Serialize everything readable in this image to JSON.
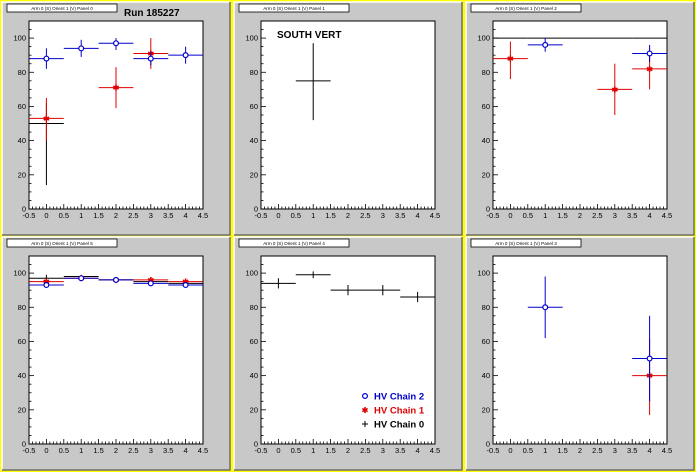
{
  "colors": {
    "outer_border": "#ffff00",
    "panel_bg": "#c8c8c8",
    "plot_bg": "#ffffff",
    "hv_chain_0": "#000000",
    "hv_chain_1": "#e00000",
    "hv_chain_2": "#0000cc"
  },
  "header": {
    "run_label": "Run 185227"
  },
  "chart_data": [
    {
      "type": "scatter",
      "panel_title": "Arm 0 (S) Orient 1 (V) Panel 0",
      "annotation": "",
      "xlim": [
        -0.5,
        4.5
      ],
      "ylim": [
        0,
        110
      ],
      "xticks": [
        "-0.5",
        "0",
        "0.5",
        "1",
        "1.5",
        "2",
        "2.5",
        "3",
        "3.5",
        "4",
        "4.5"
      ],
      "yticks": [
        "0",
        "20",
        "40",
        "60",
        "80",
        "100"
      ],
      "series": [
        {
          "color": "#000000",
          "marker": "cross",
          "points": [
            {
              "x": 0,
              "y": 50,
              "xerr": 0.5,
              "ylo": 14,
              "yhi": 62
            }
          ]
        },
        {
          "color": "#e00000",
          "marker": "star",
          "points": [
            {
              "x": 0,
              "y": 53,
              "xerr": 0.5,
              "ylo": 40,
              "yhi": 65
            },
            {
              "x": 2,
              "y": 71,
              "xerr": 0.5,
              "ylo": 59,
              "yhi": 83
            },
            {
              "x": 3,
              "y": 91,
              "xerr": 0.5,
              "ylo": 82,
              "yhi": 100
            }
          ]
        },
        {
          "color": "#0000cc",
          "marker": "circle",
          "points": [
            {
              "x": 0,
              "y": 88,
              "xerr": 0.5,
              "ylo": 82,
              "yhi": 94
            },
            {
              "x": 1,
              "y": 94,
              "xerr": 0.5,
              "ylo": 89,
              "yhi": 99
            },
            {
              "x": 2,
              "y": 97,
              "xerr": 0.5,
              "ylo": 93,
              "yhi": 100
            },
            {
              "x": 3,
              "y": 88,
              "xerr": 0.5,
              "ylo": 84,
              "yhi": 92
            },
            {
              "x": 4,
              "y": 90,
              "xerr": 0.5,
              "ylo": 85,
              "yhi": 95
            }
          ]
        }
      ]
    },
    {
      "type": "scatter",
      "panel_title": "Arm 0 (S) Orient 1 (V) Panel 1",
      "annotation": "SOUTH VERT",
      "xlim": [
        -0.5,
        4.5
      ],
      "ylim": [
        0,
        110
      ],
      "xticks": [
        "-0.5",
        "0",
        "0.5",
        "1",
        "1.5",
        "2",
        "2.5",
        "3",
        "3.5",
        "4",
        "4.5"
      ],
      "yticks": [
        "0",
        "20",
        "40",
        "60",
        "80",
        "100"
      ],
      "series": [
        {
          "color": "#000000",
          "marker": "cross",
          "points": [
            {
              "x": 1,
              "y": 75,
              "xerr": 0.5,
              "ylo": 52,
              "yhi": 97
            }
          ]
        }
      ]
    },
    {
      "type": "scatter",
      "panel_title": "Arm 0 (S) Orient 1 (V) Panel 2",
      "annotation": "",
      "xlim": [
        -0.5,
        4.5
      ],
      "ylim": [
        0,
        110
      ],
      "xticks": [
        "-0.5",
        "0",
        "0.5",
        "1",
        "1.5",
        "2",
        "2.5",
        "3",
        "3.5",
        "4",
        "4.5"
      ],
      "yticks": [
        "0",
        "20",
        "40",
        "60",
        "80",
        "100"
      ],
      "series": [
        {
          "color": "#000000",
          "marker": "cross",
          "points": [
            {
              "x": 0,
              "y": 100,
              "xerr": 0.5,
              "ylo": 100,
              "yhi": 100
            },
            {
              "x": 1,
              "y": 100,
              "xerr": 0.5,
              "ylo": 100,
              "yhi": 100
            },
            {
              "x": 2,
              "y": 100,
              "xerr": 0.5,
              "ylo": 100,
              "yhi": 100
            },
            {
              "x": 3,
              "y": 100,
              "xerr": 0.5,
              "ylo": 100,
              "yhi": 100
            },
            {
              "x": 4,
              "y": 100,
              "xerr": 0.5,
              "ylo": 100,
              "yhi": 100
            }
          ]
        },
        {
          "color": "#e00000",
          "marker": "star",
          "points": [
            {
              "x": 0,
              "y": 88,
              "xerr": 0.5,
              "ylo": 76,
              "yhi": 98
            },
            {
              "x": 3,
              "y": 70,
              "xerr": 0.5,
              "ylo": 55,
              "yhi": 85
            },
            {
              "x": 4,
              "y": 82,
              "xerr": 0.5,
              "ylo": 70,
              "yhi": 94
            }
          ]
        },
        {
          "color": "#0000cc",
          "marker": "circle",
          "points": [
            {
              "x": 1,
              "y": 96,
              "xerr": 0.5,
              "ylo": 92,
              "yhi": 100
            },
            {
              "x": 4,
              "y": 91,
              "xerr": 0.5,
              "ylo": 86,
              "yhi": 96
            }
          ]
        }
      ]
    },
    {
      "type": "scatter",
      "panel_title": "Arm 0 (S) Orient 1 (V) Panel 5",
      "annotation": "",
      "xlim": [
        -0.5,
        4.5
      ],
      "ylim": [
        0,
        110
      ],
      "xticks": [
        "-0.5",
        "0",
        "0.5",
        "1",
        "1.5",
        "2",
        "2.5",
        "3",
        "3.5",
        "4",
        "4.5"
      ],
      "yticks": [
        "0",
        "20",
        "40",
        "60",
        "80",
        "100"
      ],
      "series": [
        {
          "color": "#000000",
          "marker": "cross",
          "points": [
            {
              "x": 0,
              "y": 97,
              "xerr": 0.5,
              "ylo": 95,
              "yhi": 99
            },
            {
              "x": 1,
              "y": 98,
              "xerr": 0.5,
              "ylo": 97,
              "yhi": 99
            },
            {
              "x": 2,
              "y": 96,
              "xerr": 0.5,
              "ylo": 95,
              "yhi": 97
            },
            {
              "x": 3,
              "y": 95,
              "xerr": 0.5,
              "ylo": 94,
              "yhi": 96
            },
            {
              "x": 4,
              "y": 94,
              "xerr": 0.5,
              "ylo": 93,
              "yhi": 95
            }
          ]
        },
        {
          "color": "#e00000",
          "marker": "star",
          "points": [
            {
              "x": 0,
              "y": 95,
              "xerr": 0.5,
              "ylo": 94,
              "yhi": 96
            },
            {
              "x": 1,
              "y": 97,
              "xerr": 0.5,
              "ylo": 96,
              "yhi": 98
            },
            {
              "x": 2,
              "y": 96,
              "xerr": 0.5,
              "ylo": 95,
              "yhi": 97
            },
            {
              "x": 3,
              "y": 96,
              "xerr": 0.5,
              "ylo": 95,
              "yhi": 97
            },
            {
              "x": 4,
              "y": 95,
              "xerr": 0.5,
              "ylo": 94,
              "yhi": 96
            }
          ]
        },
        {
          "color": "#0000cc",
          "marker": "circle",
          "points": [
            {
              "x": 0,
              "y": 93,
              "xerr": 0.5,
              "ylo": 92,
              "yhi": 94
            },
            {
              "x": 1,
              "y": 97,
              "xerr": 0.5,
              "ylo": 96,
              "yhi": 98
            },
            {
              "x": 2,
              "y": 96,
              "xerr": 0.5,
              "ylo": 95,
              "yhi": 97
            },
            {
              "x": 3,
              "y": 94,
              "xerr": 0.5,
              "ylo": 93,
              "yhi": 95
            },
            {
              "x": 4,
              "y": 93,
              "xerr": 0.5,
              "ylo": 92,
              "yhi": 94
            }
          ]
        }
      ]
    },
    {
      "type": "scatter",
      "panel_title": "Arm 0 (S) Orient 1 (V) Panel 4",
      "annotation": "",
      "xlim": [
        -0.5,
        4.5
      ],
      "ylim": [
        0,
        110
      ],
      "xticks": [
        "-0.5",
        "0",
        "0.5",
        "1",
        "1.5",
        "2",
        "2.5",
        "3",
        "3.5",
        "4",
        "4.5"
      ],
      "yticks": [
        "0",
        "20",
        "40",
        "60",
        "80",
        "100"
      ],
      "legend": {
        "placement": "bottom-right",
        "entries": [
          {
            "label": "HV Chain 2",
            "color": "#0000cc",
            "marker": "circle"
          },
          {
            "label": "HV Chain 1",
            "color": "#e00000",
            "marker": "star"
          },
          {
            "label": "HV Chain 0",
            "color": "#000000",
            "marker": "cross"
          }
        ]
      },
      "series": [
        {
          "color": "#000000",
          "marker": "cross",
          "points": [
            {
              "x": 0,
              "y": 94,
              "xerr": 0.5,
              "ylo": 91,
              "yhi": 97
            },
            {
              "x": 1,
              "y": 99,
              "xerr": 0.5,
              "ylo": 97,
              "yhi": 101
            },
            {
              "x": 2,
              "y": 90,
              "xerr": 0.5,
              "ylo": 87,
              "yhi": 93
            },
            {
              "x": 3,
              "y": 90,
              "xerr": 0.5,
              "ylo": 87,
              "yhi": 93
            },
            {
              "x": 4,
              "y": 86,
              "xerr": 0.5,
              "ylo": 83,
              "yhi": 89
            }
          ]
        }
      ]
    },
    {
      "type": "scatter",
      "panel_title": "Arm 0 (S) Orient 1 (V) Panel 3",
      "annotation": "",
      "xlim": [
        -0.5,
        4.5
      ],
      "ylim": [
        0,
        110
      ],
      "xticks": [
        "-0.5",
        "0",
        "0.5",
        "1",
        "1.5",
        "2",
        "2.5",
        "3",
        "3.5",
        "4",
        "4.5"
      ],
      "yticks": [
        "0",
        "20",
        "40",
        "60",
        "80",
        "100"
      ],
      "series": [
        {
          "color": "#e00000",
          "marker": "star",
          "points": [
            {
              "x": 4,
              "y": 40,
              "xerr": 0.5,
              "ylo": 17,
              "yhi": 62
            }
          ]
        },
        {
          "color": "#0000cc",
          "marker": "circle",
          "points": [
            {
              "x": 1,
              "y": 80,
              "xerr": 0.5,
              "ylo": 62,
              "yhi": 98
            },
            {
              "x": 4,
              "y": 50,
              "xerr": 0.5,
              "ylo": 25,
              "yhi": 75
            }
          ]
        }
      ]
    }
  ]
}
